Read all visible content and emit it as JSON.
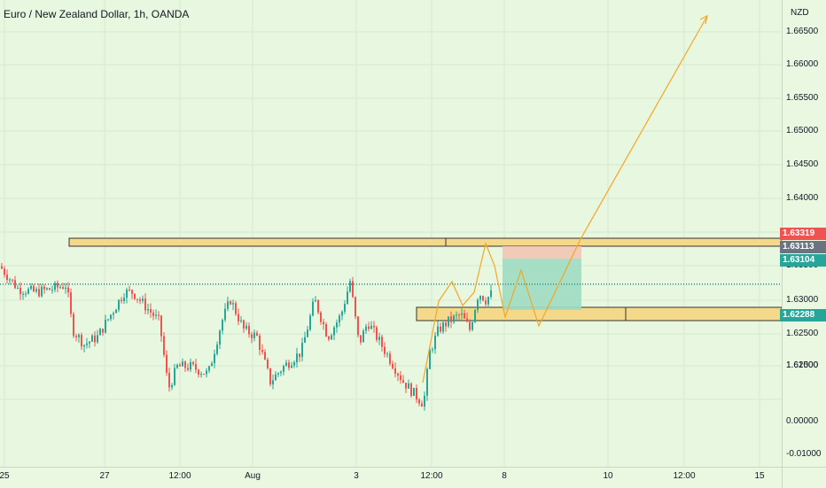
{
  "chart_header": {
    "title": "Euro / New Zealand Dollar, 1h, OANDA",
    "currency": "NZD"
  },
  "chart_data": {
    "type": "candlestick",
    "title": "Euro / New Zealand Dollar, 1h, OANDA",
    "ylabel": "NZD",
    "ylim": [
      1.607,
      1.669
    ],
    "price_ticks": [
      "1.66500",
      "1.66000",
      "1.65500",
      "1.65000",
      "1.64500",
      "1.64000",
      "1.63500",
      "1.63000",
      "1.62500",
      "1.62000",
      "1.61500",
      "0.00000",
      "-0.01000"
    ],
    "price_tick_values": [
      1.665,
      1.66,
      1.655,
      1.65,
      1.645,
      1.64,
      null,
      null,
      1.625,
      1.62,
      1.615,
      null,
      null
    ],
    "time_ticks": [
      "25",
      "27",
      "12:00",
      "Aug",
      "3",
      "12:00",
      "8",
      "10",
      "12:00",
      "15"
    ],
    "price_tags": [
      {
        "label": "1.63319",
        "value": 1.63319,
        "color": "#ef5350"
      },
      {
        "label": "1.63113",
        "value": 1.63113,
        "color": "#6b7280"
      },
      {
        "label": "1.63104",
        "value": 1.63104,
        "color": "#26a69a"
      },
      {
        "label": "1.62288",
        "value": 1.62288,
        "color": "#26a69a"
      }
    ],
    "colors": {
      "up": "#26a69a",
      "down": "#ef5350",
      "zone": "#f5d98a",
      "arrow": "#f5a623",
      "long_target": "#9fdcc2",
      "long_stop": "#f2c4b4"
    }
  }
}
